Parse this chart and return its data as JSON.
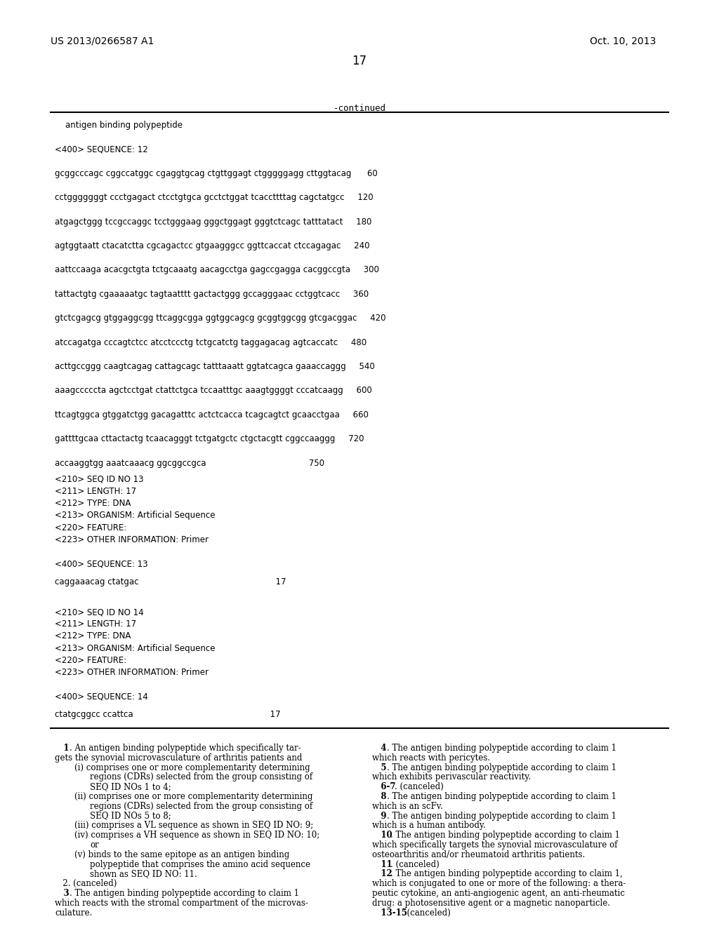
{
  "header_left": "US 2013/0266587 A1",
  "header_right": "Oct. 10, 2013",
  "page_number": "17",
  "continued_label": "-continued",
  "bg_color": "#ffffff",
  "text_color": "#000000",
  "seq_table": [
    "    antigen binding polypeptide",
    "",
    "<400> SEQUENCE: 12",
    "",
    "gcggcccagc cggccatggc cgaggtgcag ctgttggagt ctgggggagg cttggtacag      60",
    "",
    "cctgggggggt ccctgagact ctcctgtgca gcctctggat tcaccttttag cagctatgcc     120",
    "",
    "atgagctggg tccgccaggc tcctgggaag gggctggagt gggtctcagc tatttatact     180",
    "",
    "agtggtaatt ctacatctta cgcagactcc gtgaagggcc ggttcaccat ctccagagac     240",
    "",
    "aattccaaga acacgctgta tctgcaaatg aacagcctga gagccgagga cacggccgta     300",
    "",
    "tattactgtg cgaaaaatgc tagtaatttt gactactggg gccagggaac cctggtcacc     360",
    "",
    "gtctcgagcg gtggaggcgg ttcaggcgga ggtggcagcg gcggtggcgg gtcgacggac     420",
    "",
    "atccagatga cccagtctcc atcctccctg tctgcatctg taggagacag agtcaccatc     480",
    "",
    "acttgccggg caagtcagag cattagcagc tatttaaatt ggtatcagca gaaaccaggg     540",
    "",
    "aaagcccccta agctcctgat ctattctgca tccaatttgc aaagtggggt cccatcaagg     600",
    "",
    "ttcagtggca gtggatctgg gacagatttc actctcacca tcagcagtct gcaacctgaa     660",
    "",
    "gattttgcaa cttactactg tcaacagggt tctgatgctc ctgctacgtt cggccaaggg     720",
    "",
    "accaaggtgg aaatcaaacg ggcggccgca                                       750"
  ],
  "seq_info_13": [
    "<210> SEQ ID NO 13",
    "<211> LENGTH: 17",
    "<212> TYPE: DNA",
    "<213> ORGANISM: Artificial Sequence",
    "<220> FEATURE:",
    "<223> OTHER INFORMATION: Primer"
  ],
  "seq400_13": "<400> SEQUENCE: 13",
  "seq13_data": "caggaaacag ctatgac                                                    17",
  "seq_info_14": [
    "<210> SEQ ID NO 14",
    "<211> LENGTH: 17",
    "<212> TYPE: DNA",
    "<213> ORGANISM: Artificial Sequence",
    "<220> FEATURE:",
    "<223> OTHER INFORMATION: Primer"
  ],
  "seq400_14": "<400> SEQUENCE: 14",
  "seq14_data": "ctatgcggcc ccattca                                                    17",
  "claims_col1_segments": [
    {
      "bold": false,
      "indent": 1,
      "text": "   1",
      "bold_part": "1",
      "rest": ". An antigen binding polypeptide which specifically tar-"
    },
    {
      "bold": false,
      "indent": 0,
      "text": "gets the synovial microvasculature of arthritis patients and"
    },
    {
      "bold": false,
      "indent": 2,
      "text": "(i) comprises one or more complementarity determining"
    },
    {
      "bold": false,
      "indent": 3,
      "text": "regions (CDRs) selected from the group consisting of"
    },
    {
      "bold": false,
      "indent": 3,
      "text": "SEQ ID NOs 1 to 4;"
    },
    {
      "bold": false,
      "indent": 2,
      "text": "(ii) comprises one or more complementarity determining"
    },
    {
      "bold": false,
      "indent": 3,
      "text": "regions (CDRs) selected from the group consisting of"
    },
    {
      "bold": false,
      "indent": 3,
      "text": "SEQ ID NOs 5 to 8;"
    },
    {
      "bold": false,
      "indent": 2,
      "text": "(iii) comprises a VL sequence as shown in SEQ ID NO: 9;"
    },
    {
      "bold": false,
      "indent": 2,
      "text": "(iv) comprises a VH sequence as shown in SEQ ID NO: 10;"
    },
    {
      "bold": false,
      "indent": 3,
      "text": "or"
    },
    {
      "bold": false,
      "indent": 2,
      "text": "(v) binds to the same epitope as an antigen binding"
    },
    {
      "bold": false,
      "indent": 3,
      "text": "polypeptide that comprises the amino acid sequence"
    },
    {
      "bold": false,
      "indent": 3,
      "text": "shown as SEQ ID NO: 11."
    },
    {
      "bold": false,
      "indent": 1,
      "text": "   2. (canceled)"
    },
    {
      "bold": false,
      "indent": 1,
      "text": "   3",
      "bold_part": "3",
      "rest": ". The antigen binding polypeptide according to claim 1"
    },
    {
      "bold": false,
      "indent": 0,
      "text": "which reacts with the stromal compartment of the microvas-"
    },
    {
      "bold": false,
      "indent": 0,
      "text": "culature."
    }
  ],
  "claims_col2_segments": [
    {
      "text": "   4. The antigen binding polypeptide according to claim 1"
    },
    {
      "text": "which reacts with pericytes."
    },
    {
      "text": "   5. The antigen binding polypeptide according to claim 1"
    },
    {
      "text": "which exhibits perivascular reactivity."
    },
    {
      "text": "   6-7. (canceled)"
    },
    {
      "text": "   8. The antigen binding polypeptide according to claim 1"
    },
    {
      "text": "which is an scFv."
    },
    {
      "text": "   9. The antigen binding polypeptide according to claim 1"
    },
    {
      "text": "which is a human antibody."
    },
    {
      "text": "   10. The antigen binding polypeptide according to claim 1"
    },
    {
      "text": "which specifically targets the synovial microvasculature of"
    },
    {
      "text": "osteoarthritis and/or rheumatoid arthritis patients."
    },
    {
      "text": "   11. (canceled)"
    },
    {
      "text": "   12. The antigen binding polypeptide according to claim 1,"
    },
    {
      "text": "which is conjugated to one or more of the following: a thera-"
    },
    {
      "text": "peutic cytokine, an anti-angiogenic agent, an anti-rheumatic"
    },
    {
      "text": "drug: a photosensitive agent or a magnetic nanoparticle."
    },
    {
      "text": "   13-15. (canceled)"
    }
  ]
}
